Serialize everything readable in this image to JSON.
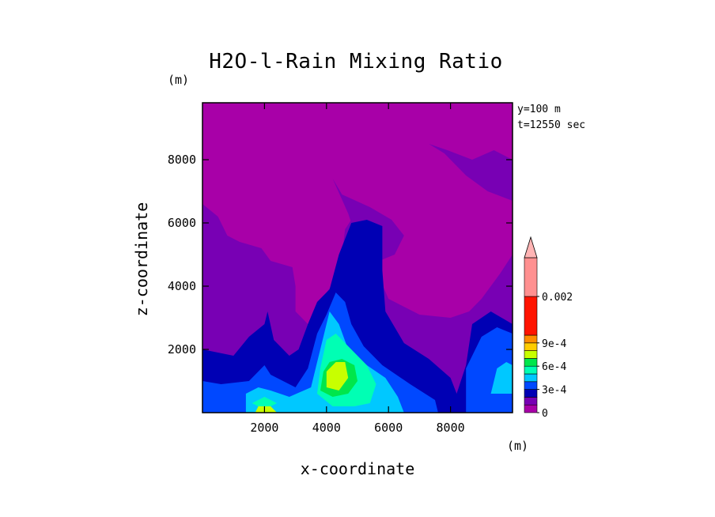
{
  "chart_data": {
    "type": "heatmap",
    "title": "H2O-l-Rain Mixing Ratio",
    "xlabel": "x-coordinate",
    "ylabel": "z-coordinate",
    "xunit": "(m)",
    "yunit": "(m)",
    "xlim": [
      0,
      10000
    ],
    "ylim": [
      0,
      9800
    ],
    "xticks": [
      "2000",
      "4000",
      "6000",
      "8000"
    ],
    "yticks": [
      "2000",
      "4000",
      "6000",
      "8000"
    ],
    "annotations": [
      "y=100 m",
      "t=12550 sec"
    ],
    "legend": {
      "placement": "right",
      "labels": [
        "0",
        "3e-4",
        "6e-4",
        "9e-4",
        "0.002"
      ],
      "levels": [
        0,
        0.0001,
        0.0002,
        0.0003,
        0.0004,
        0.0005,
        0.0006,
        0.0007,
        0.0008,
        0.0009,
        0.001,
        0.002
      ],
      "colors": [
        "#a800a8",
        "#7800b4",
        "#0000b4",
        "#0048ff",
        "#00c8ff",
        "#00ffb4",
        "#00e64b",
        "#c8ff00",
        "#ffcc00",
        "#ff8c00",
        "#ff1400",
        "#ff9090"
      ],
      "extend": "max"
    },
    "regions": [
      {
        "level": 0,
        "points": [
          [
            0,
            9800
          ],
          [
            10000,
            9800
          ],
          [
            10000,
            0
          ],
          [
            0,
            0
          ]
        ]
      },
      {
        "level": 1,
        "points": [
          [
            0,
            6600
          ],
          [
            500,
            6200
          ],
          [
            800,
            5600
          ],
          [
            1200,
            5400
          ],
          [
            1900,
            5200
          ],
          [
            2200,
            4800
          ],
          [
            2900,
            4600
          ],
          [
            3000,
            4000
          ],
          [
            3000,
            3200
          ],
          [
            3400,
            2800
          ],
          [
            3700,
            3500
          ],
          [
            4000,
            3800
          ],
          [
            4300,
            4200
          ],
          [
            4500,
            5000
          ],
          [
            4600,
            5800
          ],
          [
            4800,
            6100
          ],
          [
            5200,
            6200
          ],
          [
            5900,
            5600
          ],
          [
            5600,
            4500
          ],
          [
            6000,
            3600
          ],
          [
            7000,
            3100
          ],
          [
            8000,
            3000
          ],
          [
            8600,
            3200
          ],
          [
            9000,
            3600
          ],
          [
            9600,
            4400
          ],
          [
            10000,
            5000
          ],
          [
            10000,
            0
          ],
          [
            0,
            0
          ]
        ]
      },
      {
        "level": 1,
        "points": [
          [
            4200,
            7400
          ],
          [
            4500,
            6900
          ],
          [
            5400,
            6500
          ],
          [
            6100,
            6100
          ],
          [
            6500,
            5600
          ],
          [
            6200,
            5000
          ],
          [
            5700,
            4800
          ],
          [
            5000,
            5400
          ],
          [
            4700,
            6300
          ]
        ]
      },
      {
        "level": 1,
        "points": [
          [
            7300,
            8500
          ],
          [
            7800,
            8200
          ],
          [
            8500,
            7500
          ],
          [
            9200,
            7000
          ],
          [
            10000,
            6700
          ],
          [
            10000,
            8000
          ],
          [
            9400,
            8300
          ],
          [
            8700,
            8000
          ],
          [
            7900,
            8300
          ]
        ]
      },
      {
        "level": 2,
        "points": [
          [
            0,
            2000
          ],
          [
            1000,
            1800
          ],
          [
            1500,
            2400
          ],
          [
            2000,
            2800
          ],
          [
            2100,
            3200
          ],
          [
            2300,
            2300
          ],
          [
            2800,
            1800
          ],
          [
            3100,
            2000
          ],
          [
            3400,
            2800
          ],
          [
            3700,
            3500
          ],
          [
            4100,
            3900
          ],
          [
            4400,
            5000
          ],
          [
            4800,
            6000
          ],
          [
            5300,
            6100
          ],
          [
            5800,
            5900
          ],
          [
            5800,
            4500
          ],
          [
            5900,
            3200
          ],
          [
            6500,
            2200
          ],
          [
            7300,
            1700
          ],
          [
            8000,
            1100
          ],
          [
            8200,
            600
          ],
          [
            8500,
            1500
          ],
          [
            8700,
            2800
          ],
          [
            9300,
            3200
          ],
          [
            10000,
            2800
          ],
          [
            10000,
            0
          ],
          [
            0,
            0
          ]
        ]
      },
      {
        "level": 3,
        "points": [
          [
            0,
            1000
          ],
          [
            600,
            900
          ],
          [
            1500,
            1000
          ],
          [
            2000,
            1500
          ],
          [
            2200,
            1200
          ],
          [
            3000,
            800
          ],
          [
            3400,
            1400
          ],
          [
            3700,
            2500
          ],
          [
            4000,
            3100
          ],
          [
            4300,
            3800
          ],
          [
            4600,
            3500
          ],
          [
            4800,
            2800
          ],
          [
            5200,
            2100
          ],
          [
            5800,
            1500
          ],
          [
            6700,
            900
          ],
          [
            7500,
            400
          ],
          [
            7600,
            0
          ],
          [
            0,
            0
          ]
        ]
      },
      {
        "level": 3,
        "points": [
          [
            8500,
            0
          ],
          [
            8500,
            1400
          ],
          [
            9000,
            2400
          ],
          [
            9500,
            2700
          ],
          [
            10000,
            2500
          ],
          [
            10000,
            0
          ]
        ]
      },
      {
        "level": 4,
        "points": [
          [
            1400,
            600
          ],
          [
            1800,
            800
          ],
          [
            2200,
            700
          ],
          [
            2800,
            500
          ],
          [
            3500,
            800
          ],
          [
            3700,
            1600
          ],
          [
            3900,
            2400
          ],
          [
            4100,
            3200
          ],
          [
            4400,
            2800
          ],
          [
            4700,
            2000
          ],
          [
            5300,
            1500
          ],
          [
            5900,
            1100
          ],
          [
            6300,
            500
          ],
          [
            6500,
            0
          ],
          [
            1400,
            0
          ]
        ]
      },
      {
        "level": 4,
        "points": [
          [
            9300,
            600
          ],
          [
            9500,
            1400
          ],
          [
            9800,
            1600
          ],
          [
            10000,
            1500
          ],
          [
            10000,
            600
          ]
        ]
      },
      {
        "level": 5,
        "points": [
          [
            1600,
            300
          ],
          [
            2000,
            500
          ],
          [
            2400,
            300
          ],
          [
            2000,
            100
          ]
        ]
      },
      {
        "level": 5,
        "points": [
          [
            3700,
            600
          ],
          [
            3800,
            1400
          ],
          [
            4000,
            2300
          ],
          [
            4300,
            2500
          ],
          [
            4700,
            2100
          ],
          [
            5300,
            1500
          ],
          [
            5600,
            900
          ],
          [
            5400,
            300
          ],
          [
            4900,
            200
          ],
          [
            4200,
            200
          ]
        ]
      },
      {
        "level": 6,
        "points": [
          [
            3800,
            700
          ],
          [
            3900,
            1300
          ],
          [
            4100,
            1600
          ],
          [
            4500,
            1700
          ],
          [
            4900,
            1500
          ],
          [
            5000,
            1000
          ],
          [
            4700,
            600
          ],
          [
            4200,
            500
          ]
        ]
      },
      {
        "level": 7,
        "points": [
          [
            4000,
            800
          ],
          [
            4000,
            1300
          ],
          [
            4300,
            1600
          ],
          [
            4600,
            1600
          ],
          [
            4700,
            1100
          ],
          [
            4400,
            700
          ]
        ]
      },
      {
        "level": 7,
        "points": [
          [
            1700,
            0
          ],
          [
            1800,
            200
          ],
          [
            2200,
            200
          ],
          [
            2400,
            0
          ]
        ]
      }
    ]
  }
}
